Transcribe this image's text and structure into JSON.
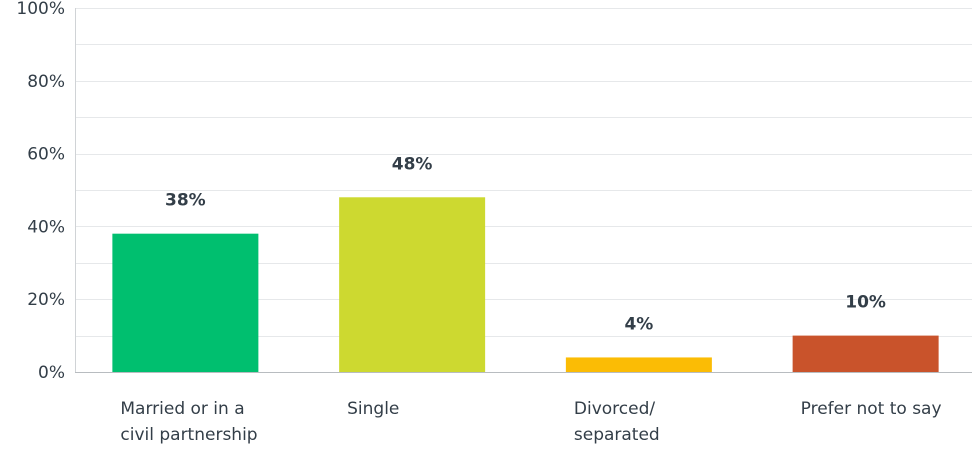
{
  "chart_data": {
    "type": "bar",
    "categories": [
      "Married or in a civil partnership",
      "Single",
      "Divorced/ separated",
      "Prefer not to say"
    ],
    "values": [
      38,
      48,
      4,
      10
    ],
    "value_labels": [
      "38%",
      "48%",
      "4%",
      "10%"
    ],
    "colors": [
      "#00bf6f",
      "#cdd930",
      "#fbbc05",
      "#c9532b"
    ],
    "ylim": [
      0,
      100
    ],
    "yticks": [
      0,
      20,
      40,
      60,
      80,
      100
    ],
    "ytick_labels": [
      "0%",
      "20%",
      "40%",
      "60%",
      "80%",
      "100%"
    ],
    "grid": true,
    "title": "",
    "xlabel": "",
    "ylabel": ""
  }
}
